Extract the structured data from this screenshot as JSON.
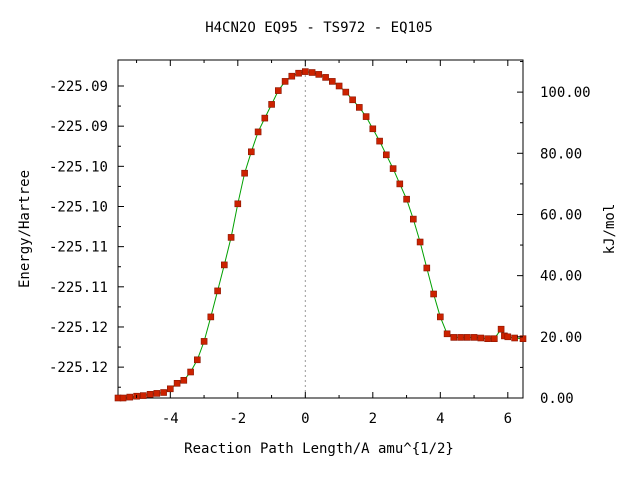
{
  "chart_data": {
    "type": "line",
    "title": "H4CN2O   EQ95 - TS972 - EQ105",
    "xlabel": "Reaction Path Length/A amu^{1/2}",
    "ylabel_left": "Energy/Hartree",
    "ylabel_right": "kJ/mol",
    "xlim": [
      -5.55,
      6.45
    ],
    "ylim_kj": [
      0,
      110.5
    ],
    "x_ticks": [
      "-4",
      "-2",
      "0",
      "2",
      "4",
      "6"
    ],
    "y_left_ticks": [
      "-225.09",
      "-225.09",
      "-225.10",
      "-225.10",
      "-225.11",
      "-225.11",
      "-225.12",
      "-225.12"
    ],
    "y_right_ticks": [
      "100.00",
      "80.00",
      "60.00",
      "40.00",
      "20.00",
      "0.00"
    ],
    "ts_marker_x": 0,
    "grid": false,
    "colors": {
      "line": "#00a000",
      "points": "#cc2200",
      "point_outline": "#8a1500",
      "ts_line": "#999999",
      "axes": "#000000"
    },
    "series": [
      {
        "x": [
          -5.55,
          -5.4,
          -5.2,
          -5.0,
          -4.8,
          -4.6,
          -4.4,
          -4.2,
          -4.0,
          -3.8,
          -3.6,
          -3.4,
          -3.2,
          -3.0,
          -2.8,
          -2.6,
          -2.4,
          -2.2,
          -2.0,
          -1.8,
          -1.6,
          -1.4,
          -1.2,
          -1.0,
          -0.8,
          -0.6,
          -0.4,
          -0.2,
          0.0,
          0.2,
          0.4,
          0.6,
          0.8,
          1.0,
          1.2,
          1.4,
          1.6,
          1.8,
          2.0,
          2.2,
          2.4,
          2.6,
          2.8,
          3.0,
          3.2,
          3.4,
          3.6,
          3.8,
          4.0,
          4.2,
          4.4,
          4.6,
          4.8,
          5.0,
          5.2,
          5.4,
          5.6,
          5.8,
          5.9,
          6.0,
          6.2,
          6.45
        ],
        "y": [
          0.0,
          0.0,
          0.3,
          0.6,
          0.8,
          1.2,
          1.5,
          1.8,
          3.0,
          4.8,
          5.8,
          8.5,
          12.5,
          18.5,
          26.5,
          35.0,
          43.5,
          52.5,
          63.5,
          73.5,
          80.5,
          87.0,
          91.5,
          96.0,
          100.5,
          103.5,
          105.2,
          106.2,
          106.7,
          106.4,
          105.8,
          104.8,
          103.5,
          102.0,
          100.0,
          97.5,
          95.0,
          92.0,
          88.0,
          84.0,
          79.5,
          75.0,
          70.0,
          65.0,
          58.5,
          51.0,
          42.5,
          34.0,
          26.5,
          21.0,
          19.8,
          19.8,
          19.8,
          19.8,
          19.6,
          19.4,
          19.4,
          22.5,
          20.3,
          20.0,
          19.6,
          19.4
        ]
      }
    ]
  }
}
